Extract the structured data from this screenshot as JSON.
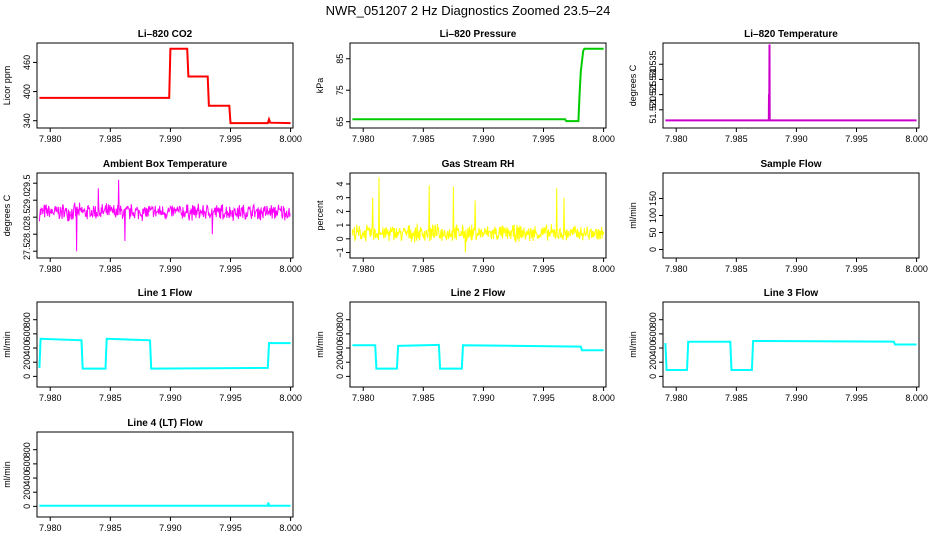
{
  "title": "NWR_051207  2 Hz Diagnostics Zoomed 23.5–24",
  "chart_data": [
    {
      "type": "line",
      "title": "Li–820 CO2",
      "ylabel": "Licor ppm",
      "color": "#ff0000",
      "xlim": [
        7.9789,
        8.0002
      ],
      "ylim": [
        325,
        500
      ],
      "x_ticks": [
        "7.980",
        "7.985",
        "7.990",
        "7.995",
        "8.000"
      ],
      "y_ticks": [
        "340",
        "400",
        "460"
      ],
      "series": [
        {
          "x": [
            7.9791,
            7.9899,
            7.99,
            7.9914,
            7.9915,
            7.9931,
            7.9932,
            7.9949,
            7.995,
            7.9981,
            7.9982,
            7.9983,
            8.0
          ],
          "y": [
            387,
            387,
            488,
            488,
            431,
            431,
            371,
            371,
            335,
            335,
            343,
            336,
            335
          ]
        }
      ]
    },
    {
      "type": "line",
      "title": "Li–820 Pressure",
      "ylabel": "kPa",
      "color": "#00cc00",
      "xlim": [
        7.9789,
        8.0002
      ],
      "ylim": [
        63,
        90
      ],
      "x_ticks": [
        "7.980",
        "7.985",
        "7.990",
        "7.995",
        "8.000"
      ],
      "y_ticks": [
        "65",
        "75",
        "85"
      ],
      "series": [
        {
          "x": [
            7.9791,
            7.9968,
            7.9969,
            7.9979,
            7.998,
            7.9981,
            7.9983,
            7.9984,
            8.0
          ],
          "y": [
            65.8,
            65.8,
            65.2,
            65.2,
            74,
            81,
            87.5,
            88.2,
            88.2
          ]
        }
      ]
    },
    {
      "type": "line",
      "title": "Li–820 Temperature",
      "ylabel": "degrees C",
      "color": "#cc00cc",
      "xlim": [
        7.9789,
        8.0002
      ],
      "ylim": [
        51.514,
        51.542
      ],
      "x_ticks": [
        "7.980",
        "7.985",
        "7.990",
        "7.995",
        "8.000"
      ],
      "y_ticks": [
        "51.520",
        "51.535"
      ],
      "y_ticks_2": [
        "51.525",
        "51.530"
      ],
      "series": [
        {
          "x": [
            7.9791,
            7.9877,
            7.98772,
            7.98774,
            7.98776,
            7.98778,
            7.9878,
            8.0
          ],
          "y": [
            51.5165,
            51.5165,
            51.5252,
            51.5165,
            51.5415,
            51.5165,
            51.5165,
            51.5165
          ]
        }
      ]
    },
    {
      "type": "line",
      "title": "Ambient Box Temperature",
      "ylabel": "degrees C",
      "color": "#ff00ff",
      "xlim": [
        7.9789,
        8.0002
      ],
      "ylim": [
        27.3,
        29.8
      ],
      "x_ticks": [
        "7.980",
        "7.985",
        "7.990",
        "7.995",
        "8.000"
      ],
      "y_ticks": [
        "27.5",
        "28.5",
        "29.5"
      ],
      "y_ticks_2": [
        "28.0",
        "29.0"
      ],
      "series": [
        {
          "x": [
            7.9791,
            8.0
          ],
          "y": [
            28.65,
            28.65
          ],
          "noise": 0.18,
          "spikes": [
            [
              7.9822,
              27.5
            ],
            [
              7.9857,
              29.6
            ],
            [
              7.9862,
              27.8
            ],
            [
              7.984,
              29.35
            ],
            [
              7.9935,
              28.0
            ]
          ]
        }
      ]
    },
    {
      "type": "line",
      "title": "Gas Stream RH",
      "ylabel": "percent",
      "color": "#ffff00",
      "xlim": [
        7.9789,
        8.0002
      ],
      "ylim": [
        -1.4,
        4.8
      ],
      "x_ticks": [
        "7.980",
        "7.985",
        "7.990",
        "7.995",
        "8.000"
      ],
      "y_ticks": [
        "−1",
        "1",
        "3"
      ],
      "y_ticks_2": [
        "0",
        "2",
        "4"
      ],
      "series": [
        {
          "x": [
            7.9791,
            8.0
          ],
          "y": [
            0.4,
            0.4
          ],
          "noise": 0.45,
          "spikes": [
            [
              7.9813,
              4.5
            ],
            [
              7.9808,
              3.0
            ],
            [
              7.9855,
              3.9
            ],
            [
              7.9875,
              3.8
            ],
            [
              7.9893,
              2.8
            ],
            [
              7.9961,
              3.7
            ],
            [
              7.9967,
              3.0
            ],
            [
              7.9885,
              -1.0
            ]
          ]
        }
      ]
    },
    {
      "type": "line",
      "title": "Sample Flow",
      "ylabel": "ml/min",
      "color": "#000000",
      "xlim": [
        7.9789,
        8.0002
      ],
      "ylim": [
        -25,
        225
      ],
      "x_ticks": [
        "7.980",
        "7.985",
        "7.990",
        "7.995",
        "8.000"
      ],
      "y_ticks": [
        "0",
        "100"
      ],
      "y_ticks_2": [
        "50",
        "150"
      ],
      "series": []
    },
    {
      "type": "line",
      "title": "Line 1 Flow",
      "ylabel": "ml/min",
      "color": "#00ffff",
      "xlim": [
        7.9789,
        8.0002
      ],
      "ylim": [
        -150,
        1050
      ],
      "x_ticks": [
        "7.980",
        "7.985",
        "7.990",
        "7.995",
        "8.000"
      ],
      "y_ticks": [
        "0",
        "400",
        "800"
      ],
      "y_ticks_2": [
        "200",
        "600"
      ],
      "series": [
        {
          "x": [
            7.9791,
            7.9792,
            7.9826,
            7.9827,
            7.9846,
            7.9847,
            7.9883,
            7.9884,
            7.9981,
            7.9982,
            8.0
          ],
          "y": [
            120,
            530,
            510,
            110,
            110,
            530,
            510,
            110,
            120,
            470,
            470
          ]
        }
      ]
    },
    {
      "type": "line",
      "title": "Line 2 Flow",
      "ylabel": "ml/min",
      "color": "#00ffff",
      "xlim": [
        7.9789,
        8.0002
      ],
      "ylim": [
        -150,
        1050
      ],
      "x_ticks": [
        "7.980",
        "7.985",
        "7.990",
        "7.995",
        "8.000"
      ],
      "y_ticks": [
        "0",
        "400",
        "800"
      ],
      "y_ticks_2": [
        "200",
        "600"
      ],
      "series": [
        {
          "x": [
            7.9791,
            7.981,
            7.9811,
            7.9828,
            7.9829,
            7.9863,
            7.9864,
            7.9882,
            7.9883,
            7.9981,
            7.9982,
            8.0
          ],
          "y": [
            440,
            440,
            110,
            110,
            430,
            445,
            110,
            110,
            440,
            420,
            370,
            370
          ]
        }
      ]
    },
    {
      "type": "line",
      "title": "Line 3 Flow",
      "ylabel": "ml/min",
      "color": "#00ffff",
      "xlim": [
        7.9789,
        8.0002
      ],
      "ylim": [
        -150,
        1050
      ],
      "x_ticks": [
        "7.980",
        "7.985",
        "7.990",
        "7.995",
        "8.000"
      ],
      "y_ticks": [
        "0",
        "400",
        "800"
      ],
      "y_ticks_2": [
        "200",
        "600"
      ],
      "series": [
        {
          "x": [
            7.9791,
            7.9792,
            7.9809,
            7.981,
            7.9845,
            7.9846,
            7.9863,
            7.9864,
            7.9981,
            7.9982,
            8.0
          ],
          "y": [
            470,
            90,
            90,
            490,
            490,
            90,
            90,
            500,
            490,
            450,
            450
          ]
        }
      ]
    },
    {
      "type": "line",
      "title": "Line 4 (LT) Flow",
      "ylabel": "ml/min",
      "color": "#00ffff",
      "xlim": [
        7.9789,
        8.0002
      ],
      "ylim": [
        -150,
        1050
      ],
      "x_ticks": [
        "7.980",
        "7.985",
        "7.990",
        "7.995",
        "8.000"
      ],
      "y_ticks": [
        "0",
        "400",
        "800"
      ],
      "y_ticks_2": [
        "200",
        "600"
      ],
      "series": [
        {
          "x": [
            7.9791,
            7.9981,
            7.99815,
            7.9982,
            8.0
          ],
          "y": [
            8,
            8,
            55,
            8,
            8
          ]
        }
      ]
    }
  ]
}
